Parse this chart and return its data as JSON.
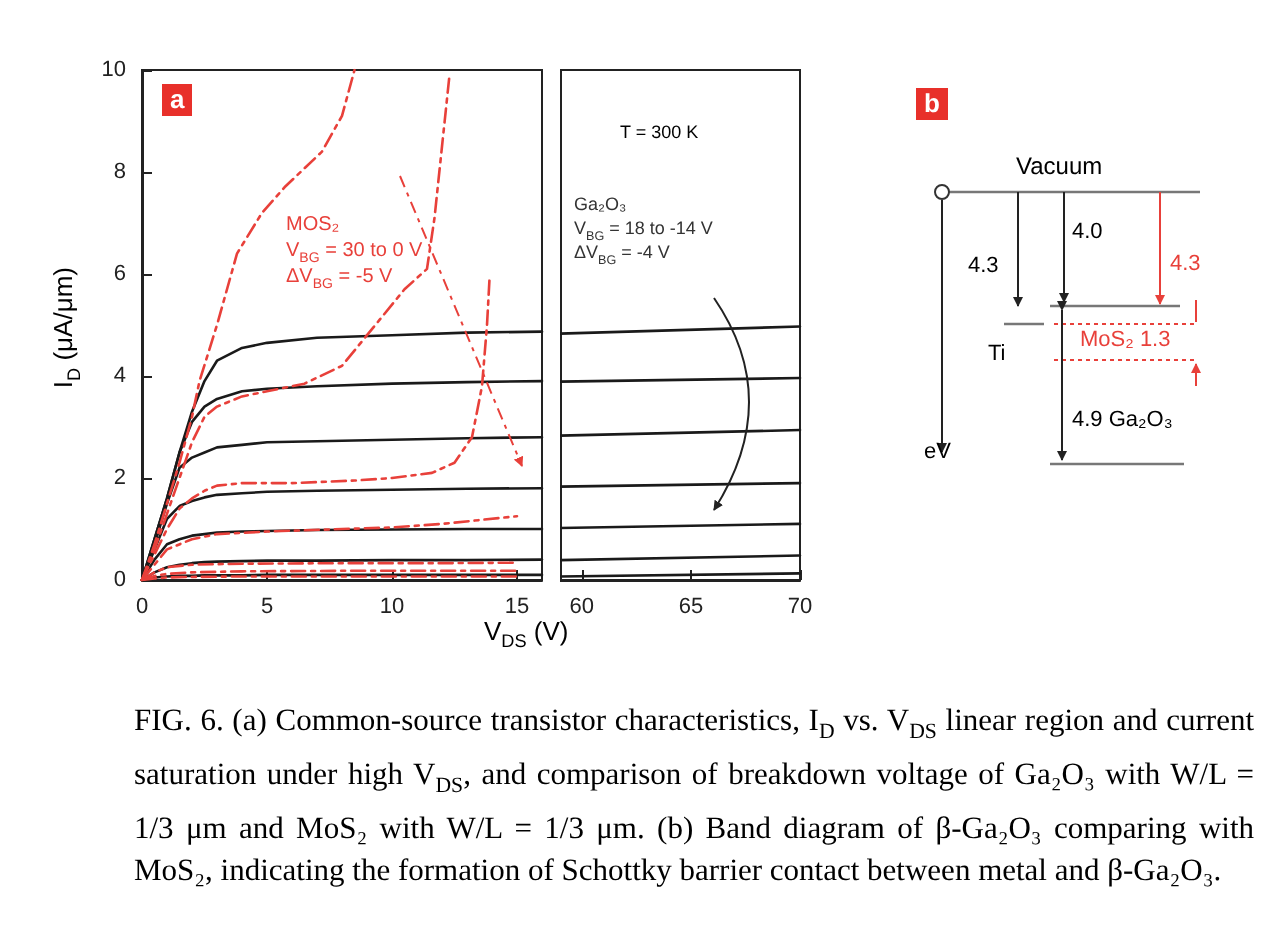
{
  "chart_data": [
    {
      "type": "line",
      "title": "a",
      "xlabel": "V$_{DS}$ (V)",
      "ylabel": "I$_{D}$ (μA/μm)",
      "xlim": [
        0,
        16
      ],
      "ylim": [
        0,
        10
      ],
      "xticks": [
        0,
        5,
        10,
        15
      ],
      "yticks": [
        0,
        2,
        4,
        6,
        8,
        10
      ],
      "grid": false,
      "marker": "none",
      "annotations": [
        "T = 300 K",
        "MOS₂",
        "V$_{BG}$ = 30 to 0 V",
        "ΔV$_{BG}$ = -5 V",
        "Ga₂O₃",
        "V$_{BG}$ = 18 to -14 V",
        "ΔV$_{BG}$ = -4 V",
        "FIG. 6. (a) Common-source transistor characteristics, I$_{D}$ vs. V$_{DS}$ linear region and current saturation under high V$_{DS}$, and comparison of breakdown voltage of Ga₂O₃ with W/L = 1/3 μm and MoS₂ with W/L = 1/3 μm. (b) Band diagram of β-Ga₂O₃ comparing with MoS₂, indicating the formation of Schottky barrier contact between metal and β-Ga₂O₃."
      ],
      "series": [
        {
          "color": "#1a1a1a",
          "line_style": "solid",
          "x": [
            0,
            0.5,
            1,
            1.5,
            2,
            2.5,
            3,
            4,
            5,
            7,
            10,
            13,
            16
          ],
          "values": [
            0,
            0.8,
            1.6,
            2.5,
            3.3,
            3.9,
            4.3,
            4.55,
            4.65,
            4.75,
            4.8,
            4.85,
            4.87
          ]
        },
        {
          "color": "#1a1a1a",
          "line_style": "solid",
          "x": [
            0,
            0.5,
            1,
            1.5,
            2,
            2.5,
            3,
            4,
            5,
            7,
            10,
            13,
            16
          ],
          "values": [
            0,
            0.8,
            1.6,
            2.5,
            3.1,
            3.4,
            3.55,
            3.7,
            3.75,
            3.8,
            3.85,
            3.88,
            3.9
          ]
        },
        {
          "color": "#1a1a1a",
          "line_style": "solid",
          "x": [
            0,
            0.5,
            1,
            1.5,
            2,
            2.5,
            3,
            4,
            5,
            7,
            10,
            13,
            16
          ],
          "values": [
            0,
            0.7,
            1.5,
            2.2,
            2.4,
            2.5,
            2.6,
            2.65,
            2.7,
            2.72,
            2.75,
            2.78,
            2.8
          ]
        },
        {
          "color": "#1a1a1a",
          "line_style": "solid",
          "x": [
            0,
            0.5,
            1,
            1.5,
            2,
            2.5,
            3,
            4,
            5,
            7,
            10,
            13,
            16
          ],
          "values": [
            0,
            0.6,
            1.2,
            1.45,
            1.55,
            1.62,
            1.67,
            1.7,
            1.73,
            1.75,
            1.77,
            1.79,
            1.8
          ]
        },
        {
          "color": "#1a1a1a",
          "line_style": "solid",
          "x": [
            0,
            0.5,
            1,
            1.5,
            2,
            2.5,
            3,
            4,
            5,
            7,
            10,
            13,
            16
          ],
          "values": [
            0,
            0.4,
            0.7,
            0.8,
            0.87,
            0.9,
            0.93,
            0.95,
            0.96,
            0.98,
            0.99,
            1.0,
            1.0
          ]
        },
        {
          "color": "#1a1a1a",
          "line_style": "solid",
          "x": [
            0,
            0.5,
            1,
            1.5,
            2,
            2.5,
            3,
            4,
            5,
            7,
            10,
            13,
            16
          ],
          "values": [
            0,
            0.15,
            0.25,
            0.3,
            0.33,
            0.35,
            0.36,
            0.37,
            0.38,
            0.38,
            0.39,
            0.39,
            0.4
          ]
        },
        {
          "color": "#1a1a1a",
          "line_style": "solid",
          "x": [
            0,
            0.5,
            1,
            1.5,
            2,
            2.5,
            3,
            4,
            5,
            7,
            10,
            13,
            16
          ],
          "values": [
            0,
            0.05,
            0.07,
            0.08,
            0.08,
            0.09,
            0.09,
            0.09,
            0.1,
            0.1,
            0.1,
            0.1,
            0.1
          ]
        },
        {
          "color": "#e8403a",
          "line_style": "dashed",
          "x": [
            0,
            0.5,
            1,
            1.5,
            2,
            2.3,
            3,
            3.8,
            4.8,
            5.7,
            7.2,
            8,
            8.5
          ],
          "values": [
            0,
            0.7,
            1.5,
            2.3,
            3.2,
            3.9,
            5,
            6.4,
            7.2,
            7.7,
            8.4,
            9.1,
            10
          ]
        },
        {
          "color": "#e8403a",
          "line_style": "dashed",
          "x": [
            0,
            0.5,
            1,
            1.5,
            2,
            2.5,
            3,
            4,
            5,
            6.5,
            8,
            9.5,
            10.5,
            11.4,
            11.7,
            12,
            12.3
          ],
          "values": [
            0,
            0.6,
            1.3,
            2,
            2.7,
            3.2,
            3.4,
            3.6,
            3.7,
            3.85,
            4.2,
            5.1,
            5.7,
            6.1,
            7.1,
            8.5,
            9.9
          ]
        },
        {
          "color": "#e8403a",
          "line_style": "dashed",
          "x": [
            0,
            0.5,
            1,
            1.5,
            2,
            2.5,
            3,
            4,
            6,
            8.5,
            10,
            11.6,
            12.5,
            13.2,
            13.6,
            13.8,
            13.9
          ],
          "values": [
            0,
            0.5,
            1,
            1.4,
            1.6,
            1.75,
            1.85,
            1.9,
            1.9,
            1.95,
            2,
            2.1,
            2.3,
            2.8,
            3.8,
            5,
            5.9
          ]
        },
        {
          "color": "#e8403a",
          "line_style": "dashed",
          "x": [
            0,
            0.5,
            1,
            2,
            3,
            5,
            8,
            10,
            12,
            15
          ],
          "values": [
            0,
            0.3,
            0.6,
            0.8,
            0.9,
            0.95,
            1,
            1.03,
            1.1,
            1.25
          ]
        },
        {
          "color": "#e8403a",
          "line_style": "dashed",
          "x": [
            0,
            0.5,
            1,
            2,
            4,
            8,
            12,
            15
          ],
          "values": [
            0,
            0.15,
            0.25,
            0.3,
            0.32,
            0.33,
            0.33,
            0.34
          ]
        },
        {
          "color": "#e8403a",
          "line_style": "dashed",
          "x": [
            0,
            0.5,
            1,
            2,
            4,
            8,
            12,
            15
          ],
          "values": [
            0,
            0.08,
            0.12,
            0.15,
            0.17,
            0.18,
            0.18,
            0.18
          ]
        },
        {
          "color": "#e8403a",
          "line_style": "dashed",
          "x": [
            0,
            0.5,
            1,
            2,
            4,
            8,
            12,
            15
          ],
          "values": [
            0,
            0.03,
            0.05,
            0.06,
            0.07,
            0.07,
            0.07,
            0.07
          ]
        }
      ]
    },
    {
      "type": "line",
      "xlim": [
        59,
        70
      ],
      "ylim": [
        0,
        10
      ],
      "xticks": [
        60,
        65,
        70
      ],
      "tick_labels": "x",
      "grid": false,
      "marker": "none",
      "series": [
        {
          "color": "#1a1a1a",
          "line_style": "solid",
          "x": [
            59,
            70
          ],
          "values": [
            4.83,
            4.97
          ]
        },
        {
          "color": "#1a1a1a",
          "line_style": "solid",
          "x": [
            59,
            70
          ],
          "values": [
            3.89,
            3.96
          ]
        },
        {
          "color": "#1a1a1a",
          "line_style": "solid",
          "x": [
            59,
            70
          ],
          "values": [
            2.83,
            2.94
          ]
        },
        {
          "color": "#1a1a1a",
          "line_style": "solid",
          "x": [
            59,
            70
          ],
          "values": [
            1.83,
            1.9
          ]
        },
        {
          "color": "#1a1a1a",
          "line_style": "solid",
          "x": [
            59,
            70
          ],
          "values": [
            1.02,
            1.1
          ]
        },
        {
          "color": "#1a1a1a",
          "line_style": "solid",
          "x": [
            59,
            70
          ],
          "values": [
            0.39,
            0.48
          ]
        },
        {
          "color": "#1a1a1a",
          "line_style": "solid",
          "x": [
            59,
            70
          ],
          "values": [
            0.07,
            0.13
          ]
        }
      ]
    },
    {
      "type": "other",
      "title": "b",
      "annotations": [
        "Vacuum",
        "4.3",
        "4.0",
        "4.3",
        "Ti",
        "MoS₂ 1.3",
        "4.9 Ga₂O₃",
        "eV"
      ]
    }
  ]
}
